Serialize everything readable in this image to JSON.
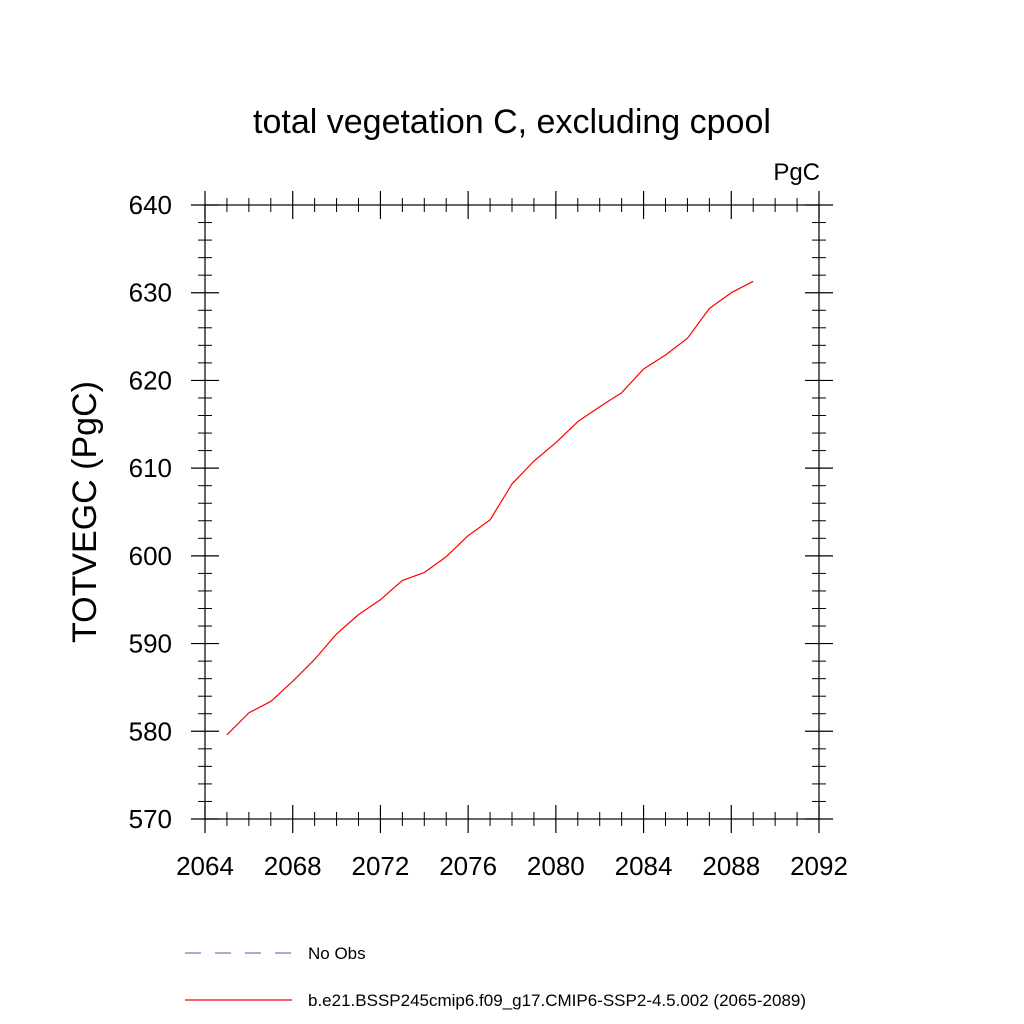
{
  "chart_data": {
    "type": "line",
    "title": "total vegetation C, excluding cpool",
    "units": "PgC",
    "ylabel": "TOTVEGC  (PgC)",
    "xlabel": "",
    "xlim": [
      2064,
      2092
    ],
    "ylim": [
      570,
      640
    ],
    "x_ticks": [
      2064,
      2068,
      2072,
      2076,
      2080,
      2084,
      2088,
      2092
    ],
    "y_ticks": [
      570,
      580,
      590,
      600,
      610,
      620,
      630,
      640
    ],
    "grid": false,
    "legend_position": "bottom",
    "series": [
      {
        "name": "b.e21.BSSP245cmip6.f09_g17.CMIP6-SSP2-4.5.002 (2065-2089)",
        "color": "#ff0000",
        "style": "solid",
        "x": [
          2065,
          2066,
          2067,
          2068,
          2069,
          2070,
          2071,
          2072,
          2073,
          2074,
          2075,
          2076,
          2077,
          2078,
          2079,
          2080,
          2081,
          2082,
          2083,
          2084,
          2085,
          2086,
          2087,
          2088,
          2089
        ],
        "values": [
          579.6,
          582.1,
          583.4,
          585.7,
          588.2,
          591.1,
          593.3,
          595.0,
          597.2,
          598.1,
          599.9,
          602.3,
          604.1,
          608.2,
          610.8,
          612.9,
          615.3,
          617.0,
          618.6,
          621.3,
          622.9,
          624.8,
          628.2,
          630.0,
          631.3
        ]
      }
    ],
    "legend": [
      {
        "label": "No Obs",
        "color": "#7b7bb8",
        "style": "dashed"
      },
      {
        "label": "b.e21.BSSP245cmip6.f09_g17.CMIP6-SSP2-4.5.002 (2065-2089)",
        "color": "#ff0000",
        "style": "solid"
      }
    ]
  }
}
